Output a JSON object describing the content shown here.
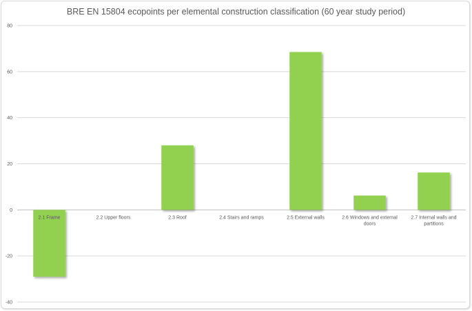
{
  "chart_data": {
    "type": "bar",
    "title": "BRE EN 15804 ecopoints per elemental construction classification (60 year study period)",
    "categories": [
      [
        "2.1 Frame"
      ],
      [
        "2.2 Upper floors"
      ],
      [
        "2.3 Roof"
      ],
      [
        "2.4 Stairs and ramps"
      ],
      [
        "2.5 External walls"
      ],
      [
        "2.6 Windows and external",
        "doors"
      ],
      [
        "2.7 Internal walls and",
        "partitions"
      ]
    ],
    "values": [
      -29,
      0,
      28,
      0,
      68.5,
      6.2,
      16.2
    ],
    "ylim": [
      -40,
      80
    ],
    "yticks": [
      -40,
      -20,
      0,
      20,
      40,
      60,
      80
    ],
    "xlabel": "",
    "ylabel": "",
    "grid": true,
    "legend": "none",
    "colors": {
      "bar": "#92d050",
      "grid": "#d9d9d9",
      "axis": "#bfbfbf",
      "text": "#595959"
    }
  }
}
